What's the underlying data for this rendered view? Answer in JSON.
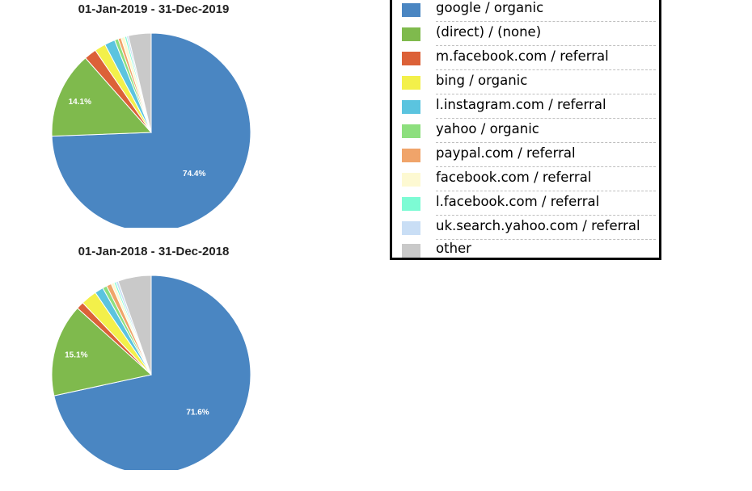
{
  "colors": {
    "google / organic": "#4a86c2",
    "(direct) / (none)": "#7fba4d",
    "m.facebook.com / referral": "#dc6138",
    "bing / organic": "#f3f04a",
    "l.instagram.com / referral": "#5bc4df",
    "yahoo / organic": "#8ddf7e",
    "paypal.com / referral": "#f0a46a",
    "facebook.com / referral": "#fdf9d2",
    "l.facebook.com / referral": "#7dfbd4",
    "uk.search.yahoo.com / referral": "#c9def5",
    "other": "#c9c9c9"
  },
  "legend": {
    "items": [
      "google / organic",
      "(direct) / (none)",
      "m.facebook.com / referral",
      "bing / organic",
      "l.instagram.com / referral",
      "yahoo / organic",
      "paypal.com / referral",
      "facebook.com / referral",
      "l.facebook.com / referral",
      "uk.search.yahoo.com / referral",
      "other"
    ]
  },
  "chart_data": [
    {
      "type": "pie",
      "title": "01-Jan-2019 - 31-Dec-2019",
      "start_angle_deg": 0,
      "direction": "clockwise",
      "legend_position": "right",
      "slices": [
        {
          "label": "google / organic",
          "value": 74.4,
          "data_label": "74.4%"
        },
        {
          "label": "(direct) / (none)",
          "value": 14.1,
          "data_label": "14.1%"
        },
        {
          "label": "m.facebook.com / referral",
          "value": 2.0,
          "data_label": ""
        },
        {
          "label": "bing / organic",
          "value": 1.8,
          "data_label": ""
        },
        {
          "label": "l.instagram.com / referral",
          "value": 1.7,
          "data_label": ""
        },
        {
          "label": "yahoo / organic",
          "value": 0.6,
          "data_label": ""
        },
        {
          "label": "paypal.com / referral",
          "value": 0.5,
          "data_label": ""
        },
        {
          "label": "facebook.com / referral",
          "value": 0.6,
          "data_label": ""
        },
        {
          "label": "l.facebook.com / referral",
          "value": 0.3,
          "data_label": ""
        },
        {
          "label": "uk.search.yahoo.com / referral",
          "value": 0.3,
          "data_label": ""
        },
        {
          "label": "other",
          "value": 3.7,
          "data_label": ""
        }
      ]
    },
    {
      "type": "pie",
      "title": "01-Jan-2018 - 31-Dec-2018",
      "start_angle_deg": 0,
      "direction": "clockwise",
      "legend_position": "right",
      "slices": [
        {
          "label": "google / organic",
          "value": 71.6,
          "data_label": "71.6%"
        },
        {
          "label": "(direct) / (none)",
          "value": 15.1,
          "data_label": "15.1%"
        },
        {
          "label": "m.facebook.com / referral",
          "value": 1.2,
          "data_label": ""
        },
        {
          "label": "bing / organic",
          "value": 2.6,
          "data_label": ""
        },
        {
          "label": "l.instagram.com / referral",
          "value": 1.4,
          "data_label": ""
        },
        {
          "label": "yahoo / organic",
          "value": 0.7,
          "data_label": ""
        },
        {
          "label": "paypal.com / referral",
          "value": 0.8,
          "data_label": ""
        },
        {
          "label": "facebook.com / referral",
          "value": 0.5,
          "data_label": ""
        },
        {
          "label": "l.facebook.com / referral",
          "value": 0.3,
          "data_label": ""
        },
        {
          "label": "uk.search.yahoo.com / referral",
          "value": 0.4,
          "data_label": ""
        },
        {
          "label": "other",
          "value": 5.4,
          "data_label": ""
        }
      ]
    }
  ]
}
